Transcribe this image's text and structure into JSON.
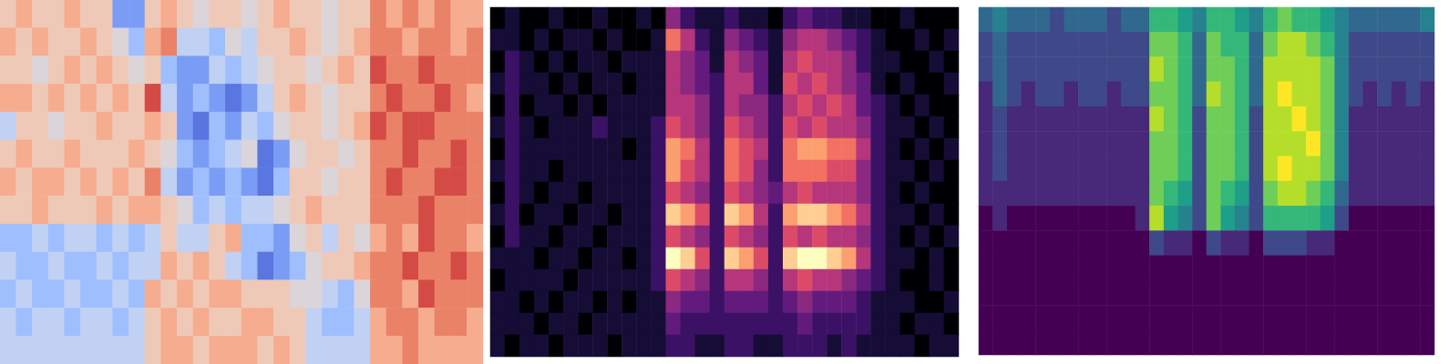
{
  "chart_data": [
    {
      "type": "heatmap",
      "tick_labels": false,
      "zlim": [
        -5,
        5
      ],
      "cells": [
        [
          1,
          2,
          1,
          1,
          2,
          1,
          1,
          -3,
          -3,
          1,
          2,
          1,
          0,
          1,
          1,
          0,
          1,
          2,
          1,
          1,
          0,
          1,
          1,
          3,
          2,
          3,
          2,
          3,
          2,
          2
        ],
        [
          2,
          1,
          2,
          1,
          1,
          2,
          1,
          0,
          -2,
          2,
          3,
          -1,
          -1,
          -2,
          0,
          -1,
          1,
          1,
          2,
          1,
          0,
          1,
          2,
          3,
          3,
          2,
          3,
          3,
          2,
          3
        ],
        [
          1,
          1,
          0,
          1,
          2,
          1,
          2,
          1,
          0,
          1,
          -2,
          -3,
          -3,
          -1,
          -2,
          -1,
          0,
          1,
          1,
          0,
          1,
          2,
          1,
          4,
          3,
          3,
          4,
          3,
          3,
          3
        ],
        [
          2,
          2,
          1,
          2,
          1,
          2,
          1,
          2,
          1,
          4,
          -1,
          -3,
          -2,
          -3,
          -4,
          -3,
          -1,
          1,
          2,
          1,
          0,
          1,
          1,
          3,
          4,
          3,
          3,
          4,
          3,
          2
        ],
        [
          -1,
          1,
          1,
          0,
          1,
          1,
          2,
          1,
          1,
          2,
          1,
          -3,
          -4,
          -2,
          -3,
          -1,
          -2,
          0,
          1,
          1,
          0,
          1,
          2,
          4,
          3,
          4,
          4,
          3,
          3,
          3
        ],
        [
          1,
          2,
          1,
          1,
          2,
          1,
          1,
          1,
          2,
          1,
          0,
          -2,
          -3,
          -2,
          -1,
          0,
          -4,
          -3,
          0,
          1,
          1,
          0,
          1,
          3,
          3,
          4,
          3,
          3,
          4,
          3
        ],
        [
          2,
          1,
          2,
          2,
          1,
          2,
          1,
          2,
          1,
          3,
          -1,
          -3,
          -2,
          -3,
          -2,
          -3,
          -4,
          -2,
          1,
          1,
          0,
          1,
          1,
          3,
          4,
          3,
          3,
          4,
          4,
          3
        ],
        [
          1,
          1,
          2,
          1,
          1,
          1,
          2,
          1,
          2,
          2,
          1,
          0,
          -2,
          -1,
          -2,
          -1,
          -1,
          0,
          1,
          2,
          1,
          1,
          1,
          3,
          3,
          3,
          4,
          3,
          3,
          3
        ],
        [
          -2,
          -2,
          -1,
          -2,
          -1,
          -1,
          -2,
          -1,
          -2,
          -1,
          1,
          -1,
          -1,
          1,
          2,
          -2,
          -2,
          -3,
          0,
          1,
          -1,
          1,
          0,
          2,
          3,
          2,
          4,
          3,
          3,
          2
        ],
        [
          -1,
          -2,
          -2,
          -1,
          -2,
          -2,
          -1,
          -2,
          -1,
          -1,
          2,
          1,
          2,
          1,
          -1,
          -2,
          -4,
          -3,
          -2,
          0,
          1,
          1,
          2,
          3,
          3,
          4,
          3,
          3,
          4,
          3
        ],
        [
          -2,
          -1,
          -2,
          -2,
          -1,
          -2,
          -2,
          -1,
          -2,
          2,
          1,
          2,
          1,
          2,
          2,
          1,
          1,
          1,
          0,
          0,
          -1,
          -2,
          0,
          3,
          3,
          2,
          4,
          3,
          3,
          3
        ],
        [
          -1,
          -2,
          -1,
          -1,
          -2,
          -1,
          -1,
          -2,
          -1,
          1,
          2,
          1,
          2,
          1,
          1,
          2,
          2,
          1,
          1,
          -1,
          -2,
          -2,
          -1,
          2,
          3,
          3,
          2,
          3,
          3,
          2
        ],
        [
          -1,
          -1,
          -1,
          -1,
          -1,
          -1,
          -1,
          -1,
          -1,
          1,
          2,
          2,
          1,
          2,
          2,
          2,
          1,
          2,
          1,
          -1,
          -1,
          -1,
          -1,
          2,
          2,
          3,
          2,
          2,
          2,
          2
        ]
      ]
    },
    {
      "type": "heatmap",
      "tick_labels": false,
      "zlim": [
        0,
        10
      ],
      "cells": [
        [
          0,
          1,
          0,
          0,
          1,
          0,
          0,
          1,
          0,
          0,
          1,
          0,
          4,
          2,
          1,
          1,
          2,
          1,
          1,
          0,
          2,
          3,
          2,
          2,
          1,
          1,
          0,
          0,
          1,
          0,
          0,
          0
        ],
        [
          1,
          1,
          0,
          1,
          0,
          1,
          1,
          0,
          1,
          0,
          0,
          1,
          7,
          5,
          2,
          1,
          4,
          3,
          2,
          1,
          4,
          5,
          5,
          4,
          3,
          2,
          1,
          0,
          0,
          1,
          0,
          1
        ],
        [
          0,
          2,
          1,
          0,
          1,
          0,
          1,
          1,
          0,
          1,
          1,
          1,
          5,
          4,
          3,
          1,
          5,
          4,
          3,
          1,
          5,
          6,
          5,
          5,
          4,
          2,
          1,
          1,
          0,
          0,
          1,
          0
        ],
        [
          1,
          2,
          1,
          1,
          0,
          1,
          0,
          1,
          1,
          0,
          1,
          1,
          5,
          4,
          3,
          2,
          5,
          5,
          3,
          1,
          6,
          5,
          6,
          5,
          4,
          3,
          1,
          0,
          1,
          0,
          0,
          1
        ],
        [
          0,
          2,
          0,
          1,
          1,
          0,
          1,
          0,
          1,
          1,
          1,
          1,
          5,
          5,
          4,
          2,
          5,
          4,
          4,
          2,
          5,
          6,
          5,
          6,
          5,
          3,
          2,
          1,
          0,
          1,
          0,
          0
        ],
        [
          1,
          2,
          1,
          0,
          1,
          1,
          1,
          2,
          1,
          1,
          1,
          2,
          6,
          5,
          4,
          2,
          6,
          5,
          4,
          2,
          6,
          5,
          6,
          5,
          5,
          4,
          2,
          1,
          1,
          0,
          1,
          0
        ],
        [
          0,
          2,
          1,
          1,
          1,
          1,
          1,
          1,
          1,
          0,
          1,
          2,
          8,
          7,
          5,
          2,
          7,
          6,
          5,
          2,
          7,
          8,
          8,
          7,
          7,
          5,
          2,
          1,
          0,
          1,
          0,
          1
        ],
        [
          1,
          2,
          1,
          1,
          0,
          1,
          1,
          1,
          1,
          1,
          1,
          2,
          8,
          6,
          5,
          2,
          7,
          6,
          4,
          2,
          7,
          7,
          7,
          6,
          6,
          4,
          2,
          1,
          1,
          0,
          1,
          0
        ],
        [
          0,
          2,
          1,
          0,
          1,
          1,
          0,
          1,
          1,
          1,
          1,
          2,
          6,
          5,
          4,
          2,
          6,
          5,
          4,
          3,
          5,
          6,
          5,
          5,
          5,
          4,
          2,
          1,
          0,
          1,
          0,
          0
        ],
        [
          1,
          2,
          0,
          1,
          1,
          0,
          1,
          1,
          0,
          1,
          1,
          2,
          9,
          8,
          6,
          2,
          9,
          8,
          5,
          2,
          8,
          9,
          9,
          8,
          7,
          5,
          2,
          1,
          1,
          0,
          1,
          0
        ],
        [
          0,
          2,
          1,
          1,
          0,
          1,
          1,
          0,
          1,
          1,
          1,
          2,
          6,
          5,
          4,
          2,
          6,
          5,
          4,
          2,
          6,
          5,
          6,
          5,
          5,
          4,
          2,
          1,
          0,
          1,
          0,
          1
        ],
        [
          1,
          1,
          1,
          0,
          1,
          1,
          0,
          1,
          1,
          0,
          1,
          2,
          10,
          9,
          6,
          2,
          9,
          8,
          6,
          2,
          9,
          10,
          10,
          9,
          8,
          5,
          2,
          1,
          1,
          0,
          1,
          0
        ],
        [
          0,
          1,
          1,
          1,
          1,
          0,
          1,
          1,
          1,
          1,
          1,
          2,
          6,
          5,
          4,
          2,
          5,
          5,
          4,
          2,
          5,
          6,
          5,
          5,
          4,
          3,
          2,
          1,
          0,
          0,
          1,
          0
        ],
        [
          1,
          1,
          0,
          1,
          0,
          1,
          1,
          0,
          1,
          0,
          1,
          1,
          4,
          3,
          3,
          2,
          3,
          3,
          3,
          2,
          3,
          4,
          3,
          3,
          3,
          2,
          1,
          1,
          1,
          0,
          0,
          1
        ],
        [
          1,
          1,
          1,
          0,
          1,
          1,
          0,
          1,
          1,
          1,
          1,
          1,
          3,
          2,
          2,
          2,
          2,
          2,
          2,
          2,
          2,
          3,
          2,
          2,
          2,
          2,
          1,
          1,
          0,
          1,
          1,
          0
        ],
        [
          1,
          0,
          1,
          1,
          0,
          1,
          1,
          1,
          0,
          1,
          1,
          1,
          2,
          2,
          1,
          1,
          2,
          2,
          1,
          1,
          2,
          2,
          2,
          1,
          2,
          1,
          1,
          1,
          1,
          0,
          1,
          1
        ]
      ]
    },
    {
      "type": "heatmap",
      "tick_labels": false,
      "zlim": [
        0,
        9
      ],
      "cells": [
        [
          3,
          4,
          3,
          3,
          3,
          2,
          3,
          3,
          3,
          2,
          3,
          3,
          6,
          6,
          5,
          4,
          6,
          6,
          5,
          4,
          6,
          7,
          6,
          6,
          5,
          4,
          3,
          3,
          3,
          3,
          3,
          4
        ],
        [
          2,
          3,
          2,
          2,
          2,
          2,
          2,
          2,
          2,
          2,
          2,
          2,
          7,
          7,
          6,
          3,
          7,
          6,
          6,
          3,
          7,
          8,
          8,
          7,
          6,
          4,
          2,
          2,
          2,
          2,
          2,
          2
        ],
        [
          2,
          3,
          2,
          2,
          2,
          2,
          2,
          2,
          2,
          2,
          2,
          2,
          8,
          7,
          6,
          3,
          7,
          7,
          6,
          3,
          8,
          8,
          8,
          8,
          7,
          4,
          2,
          2,
          2,
          2,
          2,
          2
        ],
        [
          1,
          3,
          2,
          1,
          2,
          2,
          1,
          2,
          2,
          1,
          2,
          2,
          7,
          7,
          6,
          3,
          8,
          7,
          6,
          3,
          8,
          9,
          8,
          8,
          7,
          4,
          2,
          1,
          2,
          1,
          2,
          1
        ],
        [
          1,
          2,
          1,
          1,
          1,
          1,
          1,
          1,
          1,
          1,
          1,
          1,
          8,
          7,
          6,
          2,
          7,
          7,
          6,
          2,
          8,
          8,
          9,
          8,
          7,
          4,
          1,
          1,
          1,
          1,
          1,
          1
        ],
        [
          1,
          2,
          1,
          1,
          1,
          1,
          1,
          1,
          1,
          1,
          1,
          1,
          7,
          7,
          6,
          2,
          7,
          7,
          6,
          2,
          8,
          8,
          8,
          9,
          7,
          4,
          1,
          1,
          1,
          1,
          1,
          1
        ],
        [
          1,
          2,
          1,
          1,
          1,
          1,
          1,
          1,
          1,
          1,
          1,
          1,
          7,
          7,
          6,
          2,
          7,
          7,
          6,
          2,
          8,
          9,
          8,
          8,
          7,
          4,
          1,
          1,
          1,
          1,
          1,
          1
        ],
        [
          1,
          1,
          1,
          1,
          1,
          1,
          1,
          1,
          1,
          1,
          1,
          1,
          7,
          6,
          5,
          2,
          7,
          6,
          5,
          2,
          7,
          8,
          8,
          7,
          6,
          3,
          1,
          1,
          1,
          1,
          1,
          1
        ],
        [
          0,
          1,
          0,
          0,
          0,
          0,
          0,
          0,
          0,
          0,
          0,
          1,
          8,
          5,
          4,
          2,
          7,
          5,
          4,
          2,
          6,
          6,
          6,
          6,
          5,
          2,
          0,
          0,
          0,
          0,
          0,
          0
        ],
        [
          0,
          0,
          0,
          0,
          0,
          0,
          0,
          0,
          0,
          0,
          0,
          0,
          2,
          1,
          1,
          0,
          2,
          1,
          1,
          0,
          2,
          2,
          2,
          1,
          1,
          0,
          0,
          0,
          0,
          0,
          0,
          0
        ],
        [
          0,
          0,
          0,
          0,
          0,
          0,
          0,
          0,
          0,
          0,
          0,
          0,
          0,
          0,
          0,
          0,
          0,
          0,
          0,
          0,
          0,
          0,
          0,
          0,
          0,
          0,
          0,
          0,
          0,
          0,
          0,
          0
        ],
        [
          0,
          0,
          0,
          0,
          0,
          0,
          0,
          0,
          0,
          0,
          0,
          0,
          0,
          0,
          0,
          0,
          0,
          0,
          0,
          0,
          0,
          0,
          0,
          0,
          0,
          0,
          0,
          0,
          0,
          0,
          0,
          0
        ],
        [
          0,
          0,
          0,
          0,
          0,
          0,
          0,
          0,
          0,
          0,
          0,
          0,
          0,
          0,
          0,
          0,
          0,
          0,
          0,
          0,
          0,
          0,
          0,
          0,
          0,
          0,
          0,
          0,
          0,
          0,
          0,
          0
        ],
        [
          0,
          0,
          0,
          0,
          0,
          0,
          0,
          0,
          0,
          0,
          0,
          0,
          0,
          0,
          0,
          0,
          0,
          0,
          0,
          0,
          0,
          0,
          0,
          0,
          0,
          0,
          0,
          0,
          0,
          0,
          0,
          0
        ]
      ]
    }
  ]
}
